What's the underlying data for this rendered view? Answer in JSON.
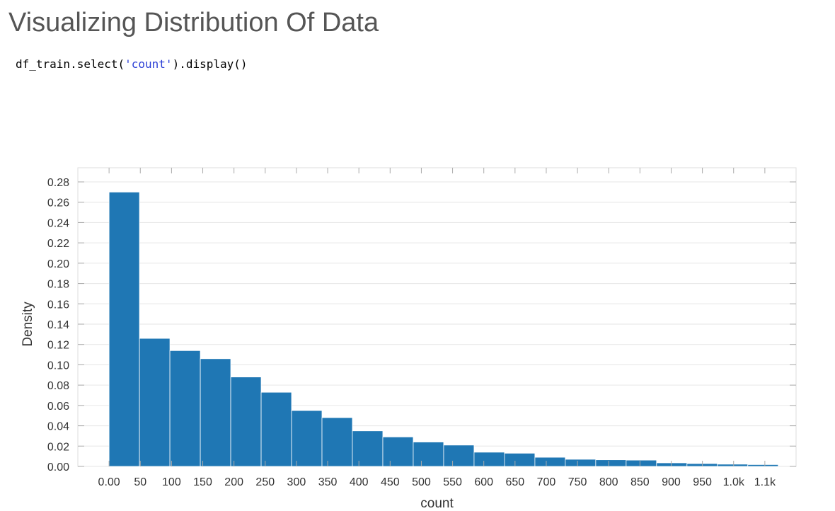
{
  "page": {
    "heading": "Visualizing Distribution Of Data",
    "code": {
      "prefix": "df_train.select(",
      "string_arg": "'count'",
      "suffix": ").display()",
      "string_color": "#2b3fd6"
    }
  },
  "chart_data": {
    "type": "bar",
    "xlabel": "count",
    "ylabel": "Density",
    "bar_color": "#1f77b4",
    "grid": true,
    "xlim": [
      -50,
      1100
    ],
    "ylim": [
      0,
      0.28
    ],
    "x_ticks": [
      0,
      50,
      100,
      150,
      200,
      250,
      300,
      350,
      400,
      450,
      500,
      550,
      600,
      650,
      700,
      750,
      800,
      850,
      900,
      950,
      1000,
      1050
    ],
    "x_tick_labels": [
      "0.00",
      "50",
      "100",
      "150",
      "200",
      "250",
      "300",
      "350",
      "400",
      "450",
      "500",
      "550",
      "600",
      "650",
      "700",
      "750",
      "800",
      "850",
      "900",
      "950",
      "1.0k",
      "1.1k"
    ],
    "y_ticks": [
      0,
      0.02,
      0.04,
      0.06,
      0.08,
      0.1,
      0.12,
      0.14,
      0.16,
      0.18,
      0.2,
      0.22,
      0.24,
      0.26,
      0.28
    ],
    "y_tick_labels": [
      "0.00",
      "0.02",
      "0.04",
      "0.06",
      "0.08",
      "0.10",
      "0.12",
      "0.14",
      "0.16",
      "0.18",
      "0.20",
      "0.22",
      "0.24",
      "0.26",
      "0.28"
    ],
    "bins": [
      {
        "x0": 0,
        "x1": 48.7,
        "density": 0.27
      },
      {
        "x0": 48.7,
        "x1": 97.4,
        "density": 0.126
      },
      {
        "x0": 97.4,
        "x1": 146.1,
        "density": 0.114
      },
      {
        "x0": 146.1,
        "x1": 194.8,
        "density": 0.106
      },
      {
        "x0": 194.8,
        "x1": 243.5,
        "density": 0.088
      },
      {
        "x0": 243.5,
        "x1": 292.2,
        "density": 0.073
      },
      {
        "x0": 292.2,
        "x1": 340.9,
        "density": 0.055
      },
      {
        "x0": 340.9,
        "x1": 389.6,
        "density": 0.048
      },
      {
        "x0": 389.6,
        "x1": 438.3,
        "density": 0.035
      },
      {
        "x0": 438.3,
        "x1": 487.0,
        "density": 0.029
      },
      {
        "x0": 487.0,
        "x1": 535.7,
        "density": 0.024
      },
      {
        "x0": 535.7,
        "x1": 584.4,
        "density": 0.021
      },
      {
        "x0": 584.4,
        "x1": 633.1,
        "density": 0.014
      },
      {
        "x0": 633.1,
        "x1": 681.8,
        "density": 0.013
      },
      {
        "x0": 681.8,
        "x1": 730.5,
        "density": 0.009
      },
      {
        "x0": 730.5,
        "x1": 779.2,
        "density": 0.007
      },
      {
        "x0": 779.2,
        "x1": 827.9,
        "density": 0.0065
      },
      {
        "x0": 827.9,
        "x1": 876.6,
        "density": 0.0062
      },
      {
        "x0": 876.6,
        "x1": 925.3,
        "density": 0.0035
      },
      {
        "x0": 925.3,
        "x1": 974.0,
        "density": 0.0028
      },
      {
        "x0": 974.0,
        "x1": 1022.7,
        "density": 0.0022
      },
      {
        "x0": 1022.7,
        "x1": 1071.4,
        "density": 0.0018
      }
    ]
  }
}
